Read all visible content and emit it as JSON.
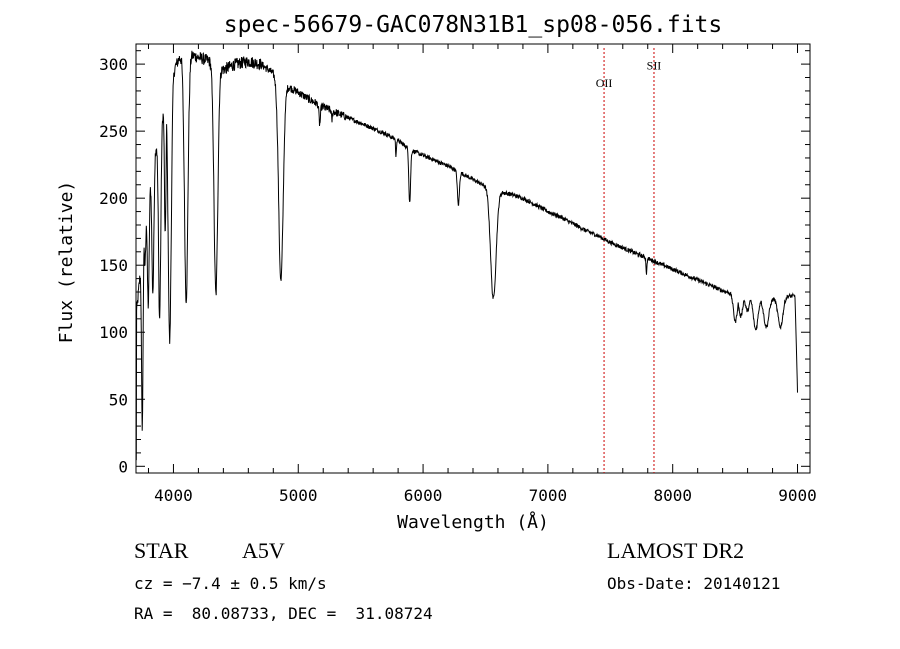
{
  "chart_data": {
    "type": "line",
    "title": "spec-56679-GAC078N31B1_sp08-056.fits",
    "xlabel": "Wavelength (Å)",
    "ylabel": "Flux (relative)",
    "xlim": [
      3700,
      9100
    ],
    "ylim": [
      -5,
      315
    ],
    "xticks": [
      4000,
      5000,
      6000,
      7000,
      8000,
      9000
    ],
    "yticks": [
      0,
      50,
      100,
      150,
      200,
      250,
      300
    ],
    "grid": false,
    "line_color": "#000000",
    "continuum": [
      [
        3700,
        110
      ],
      [
        3760,
        170
      ],
      [
        3840,
        230
      ],
      [
        3920,
        265
      ],
      [
        4000,
        295
      ],
      [
        4050,
        305
      ],
      [
        4100,
        308
      ],
      [
        4200,
        305
      ],
      [
        4300,
        302
      ],
      [
        4400,
        296
      ],
      [
        4500,
        300
      ],
      [
        4600,
        302
      ],
      [
        4700,
        300
      ],
      [
        4800,
        293
      ],
      [
        4900,
        284
      ],
      [
        5000,
        279
      ],
      [
        5100,
        273
      ],
      [
        5200,
        268
      ],
      [
        5300,
        264
      ],
      [
        5400,
        260
      ],
      [
        5500,
        256
      ],
      [
        5600,
        252
      ],
      [
        5700,
        248
      ],
      [
        5800,
        243
      ],
      [
        5900,
        236
      ],
      [
        6000,
        232
      ],
      [
        6100,
        228
      ],
      [
        6200,
        224
      ],
      [
        6300,
        219
      ],
      [
        6400,
        214
      ],
      [
        6500,
        209
      ],
      [
        6600,
        205
      ],
      [
        6700,
        203
      ],
      [
        6800,
        200
      ],
      [
        6900,
        195
      ],
      [
        7000,
        190
      ],
      [
        7100,
        186
      ],
      [
        7200,
        181
      ],
      [
        7300,
        176
      ],
      [
        7400,
        172
      ],
      [
        7500,
        167
      ],
      [
        7600,
        163
      ],
      [
        7700,
        159
      ],
      [
        7800,
        155
      ],
      [
        7900,
        151
      ],
      [
        8000,
        147
      ],
      [
        8100,
        143
      ],
      [
        8200,
        139
      ],
      [
        8300,
        135
      ],
      [
        8400,
        131
      ],
      [
        8500,
        128
      ],
      [
        8600,
        126
      ],
      [
        8700,
        125
      ],
      [
        8800,
        125
      ],
      [
        8900,
        127
      ],
      [
        8980,
        127
      ],
      [
        9000,
        55
      ]
    ],
    "absorption_lines": [
      {
        "center": 3750,
        "width": 6,
        "min": 30
      },
      {
        "center": 3771,
        "width": 6,
        "min": 150
      },
      {
        "center": 3798,
        "width": 7,
        "min": 120
      },
      {
        "center": 3835,
        "width": 8,
        "min": 130
      },
      {
        "center": 3889,
        "width": 9,
        "min": 110
      },
      {
        "center": 3934,
        "width": 6,
        "min": 170
      },
      {
        "center": 3970,
        "width": 12,
        "min": 93
      },
      {
        "center": 4102,
        "width": 14,
        "min": 125
      },
      {
        "center": 4340,
        "width": 15,
        "min": 128
      },
      {
        "center": 4861,
        "width": 18,
        "min": 138
      },
      {
        "center": 5172,
        "width": 6,
        "min": 255
      },
      {
        "center": 5270,
        "width": 4,
        "min": 258
      },
      {
        "center": 5783,
        "width": 3,
        "min": 230
      },
      {
        "center": 5893,
        "width": 7,
        "min": 197
      },
      {
        "center": 6283,
        "width": 8,
        "min": 195
      },
      {
        "center": 6563,
        "width": 22,
        "min": 125
      },
      {
        "center": 7790,
        "width": 4,
        "min": 144
      },
      {
        "center": 8502,
        "width": 15,
        "min": 108
      },
      {
        "center": 8545,
        "width": 15,
        "min": 112
      },
      {
        "center": 8598,
        "width": 15,
        "min": 116
      },
      {
        "center": 8665,
        "width": 18,
        "min": 102
      },
      {
        "center": 8750,
        "width": 20,
        "min": 104
      },
      {
        "center": 8863,
        "width": 20,
        "min": 104
      }
    ],
    "emission_markers": [
      {
        "label": "OII",
        "wavelength": 7450,
        "label_y": 283
      },
      {
        "label": "SII",
        "wavelength": 7850,
        "label_y": 296
      }
    ],
    "marker_color": "#cc0000"
  },
  "info": {
    "object_class": "STAR",
    "subclass": "A5V",
    "survey": "LAMOST DR2",
    "cz": "cz = −7.4 ± 0.5 km/s",
    "obs_date": "Obs-Date: 20140121",
    "coords": "RA =  80.08733, DEC =  31.08724"
  }
}
